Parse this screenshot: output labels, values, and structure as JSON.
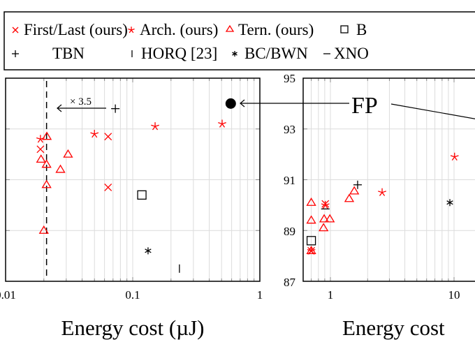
{
  "chart_data": [
    {
      "type": "scatter",
      "xlabel": "Energy cost (µJ)",
      "xscale": "log",
      "xticks": [
        "0.01",
        "0.1",
        "1"
      ],
      "ylim": [
        87,
        95
      ],
      "grid": true,
      "annotations": [
        {
          "text": "× 3.5",
          "arrow": "left"
        },
        {
          "dashed_vertical_line_x": 0.021
        }
      ],
      "series": [
        {
          "name": "First/Last (ours)",
          "marker": "x",
          "color": "#ff0000",
          "points": [
            [
              0.0188,
              92.2
            ],
            [
              0.064,
              92.7
            ],
            [
              0.064,
              90.7
            ]
          ]
        },
        {
          "name": "Arch. (ours)",
          "marker": "star",
          "color": "#ff0000",
          "points": [
            [
              0.0188,
              92.6
            ],
            [
              0.05,
              92.8
            ],
            [
              0.15,
              93.1
            ],
            [
              0.505,
              93.2
            ]
          ]
        },
        {
          "name": "Tern. (ours)",
          "marker": "triangle",
          "color": "#ff0000",
          "points": [
            [
              0.0211,
              92.7
            ],
            [
              0.019,
              91.8
            ],
            [
              0.021,
              91.6
            ],
            [
              0.031,
              92.0
            ],
            [
              0.027,
              91.4
            ],
            [
              0.021,
              90.8
            ],
            [
              0.02,
              89.0
            ]
          ]
        },
        {
          "name": "B",
          "marker": "square",
          "color": "#000000",
          "points": [
            [
              0.118,
              90.4
            ]
          ]
        },
        {
          "name": "TBN",
          "marker": "plus",
          "color": "#000000",
          "points": [
            [
              0.073,
              93.8
            ]
          ]
        },
        {
          "name": "HORQ [23]",
          "marker": "vbar",
          "color": "#000000",
          "points": [
            [
              0.233,
              87.5
            ]
          ]
        },
        {
          "name": "BC/BWN",
          "marker": "asterisk",
          "color": "#000000",
          "points": [
            [
              0.132,
              88.2
            ]
          ]
        },
        {
          "name": "FP",
          "marker": "circle",
          "color": "#000000",
          "points": [
            [
              0.59,
              94.0
            ]
          ]
        }
      ]
    },
    {
      "type": "scatter",
      "xlabel": "Energy cost",
      "xscale": "log",
      "xticks": [
        "1",
        "10"
      ],
      "yticks": [
        "95",
        "93",
        "91",
        "89",
        "87"
      ],
      "ylim": [
        87,
        95
      ],
      "grid": true,
      "annotations": [
        {
          "text": "FP"
        }
      ],
      "series": [
        {
          "name": "First/Last (ours)",
          "marker": "x",
          "color": "#ff0000",
          "points": [
            [
              0.91,
              90.05
            ],
            [
              0.7,
              88.2
            ]
          ]
        },
        {
          "name": "Arch. (ours)",
          "marker": "star",
          "color": "#ff0000",
          "points": [
            [
              0.91,
              90.0
            ],
            [
              2.62,
              90.5
            ],
            [
              10.1,
              91.9
            ],
            [
              0.7,
              88.2
            ]
          ]
        },
        {
          "name": "Tern. (ours)",
          "marker": "triangle",
          "color": "#ff0000",
          "points": [
            [
              0.7,
              90.1
            ],
            [
              0.7,
              89.4
            ],
            [
              0.89,
              89.45
            ],
            [
              0.99,
              89.45
            ],
            [
              0.88,
              89.1
            ],
            [
              1.42,
              90.25
            ],
            [
              1.56,
              90.55
            ],
            [
              0.7,
              88.2
            ]
          ]
        },
        {
          "name": "B",
          "marker": "square",
          "color": "#000000",
          "points": [
            [
              0.7,
              88.6
            ]
          ]
        },
        {
          "name": "TBN",
          "marker": "plus",
          "color": "#000000",
          "points": [
            [
              1.66,
              90.8
            ]
          ]
        },
        {
          "name": "BC/BWN",
          "marker": "asterisk",
          "color": "#000000",
          "points": [
            [
              9.25,
              90.1
            ]
          ]
        },
        {
          "name": "XNO",
          "marker": "hbar",
          "color": "#000000",
          "points": [
            [
              0.91,
              89.85
            ]
          ]
        }
      ]
    }
  ],
  "legend": {
    "placement": "top",
    "entries": [
      {
        "label": "First/Last (ours)",
        "marker": "x",
        "color": "#ff0000"
      },
      {
        "label": "Arch. (ours)",
        "marker": "star",
        "color": "#ff0000"
      },
      {
        "label": "Tern. (ours)",
        "marker": "triangle",
        "color": "#ff0000"
      },
      {
        "label": "B",
        "marker": "square",
        "color": "#000000"
      },
      {
        "label": "TBN",
        "marker": "plus",
        "color": "#000000"
      },
      {
        "label": "HORQ [23]",
        "marker": "vbar",
        "color": "#000000"
      },
      {
        "label": "BC/BWN",
        "marker": "asterisk",
        "color": "#000000"
      },
      {
        "label": "XNO",
        "marker": "hbar",
        "color": "#000000"
      }
    ]
  }
}
